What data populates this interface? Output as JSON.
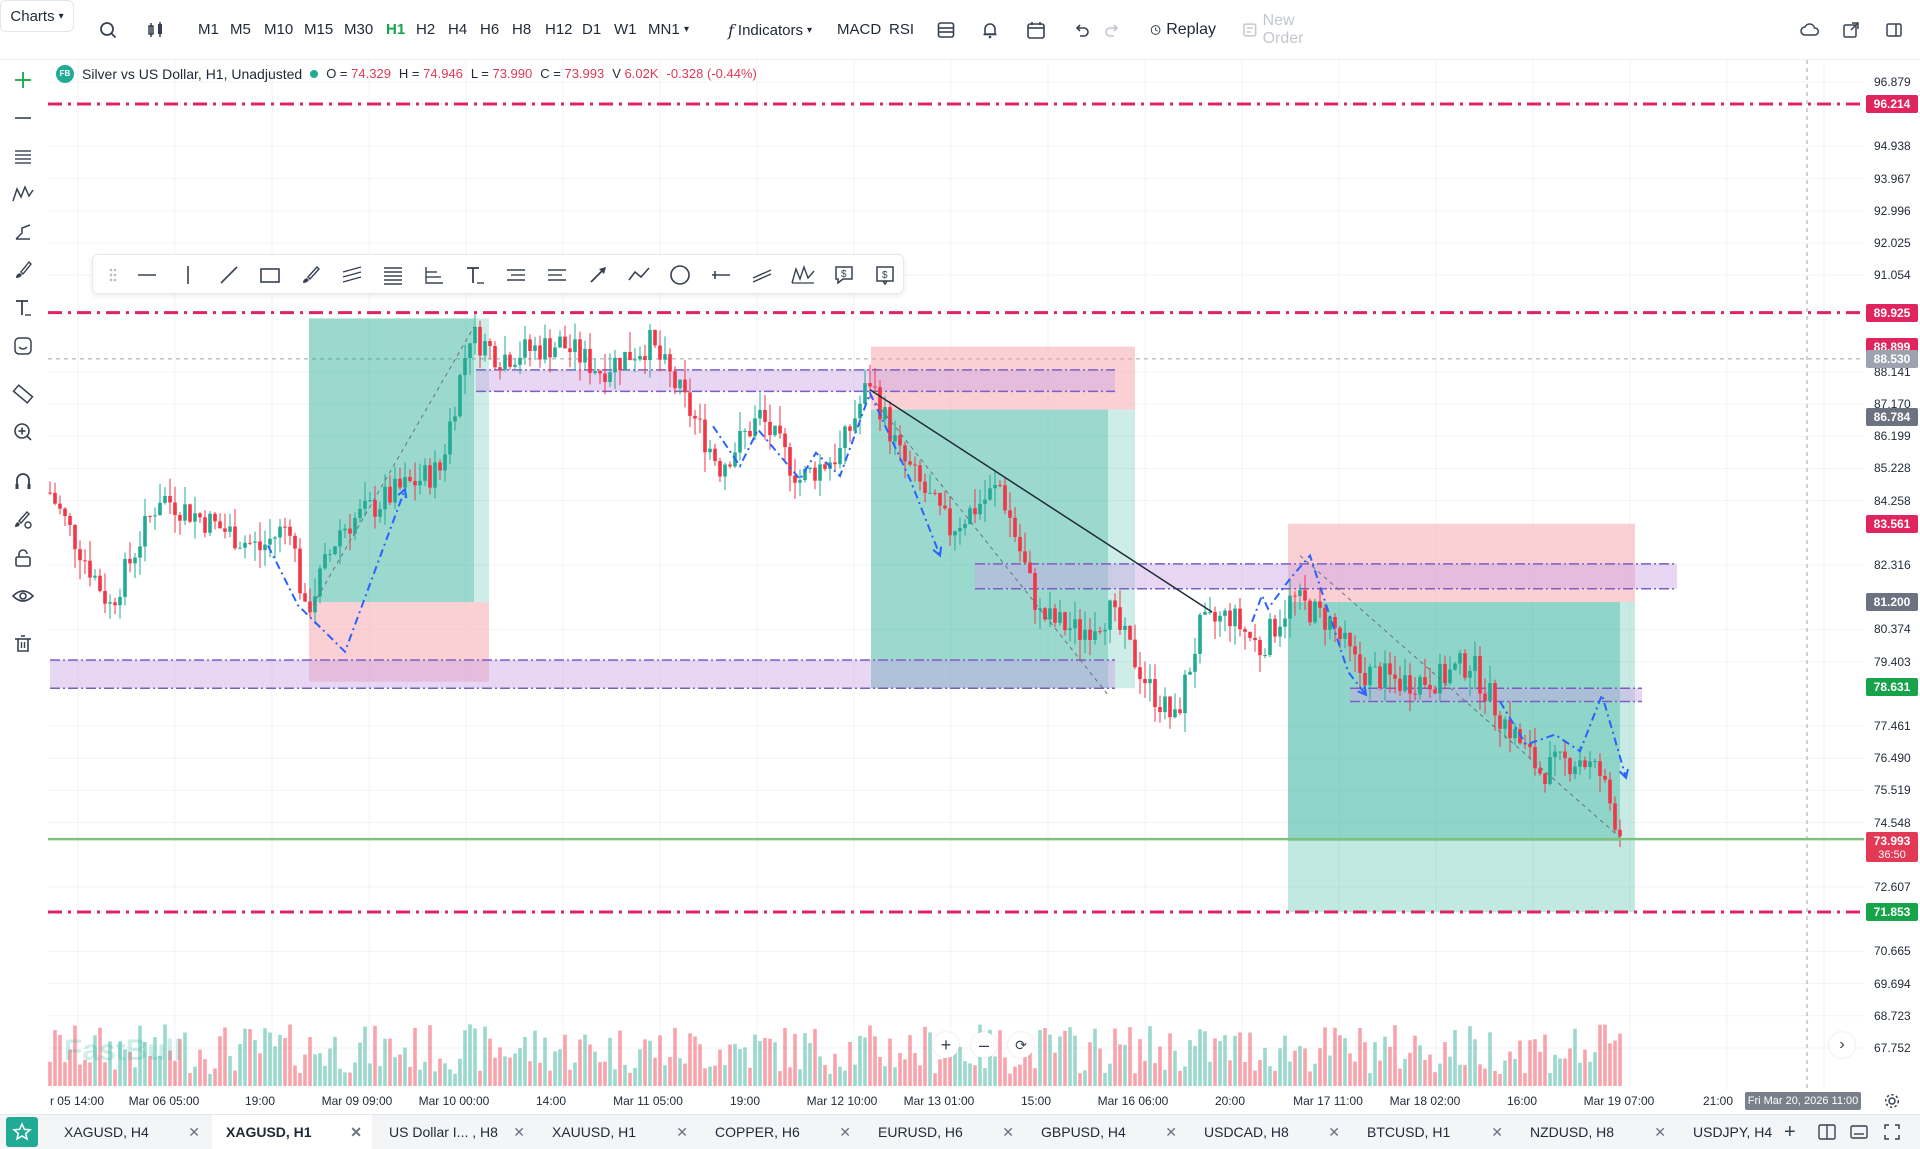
{
  "toolbar": {
    "charts_label": "Charts",
    "timeframes": [
      "M1",
      "M5",
      "M10",
      "M15",
      "M30",
      "H1",
      "H2",
      "H4",
      "H6",
      "H8",
      "H12",
      "D1",
      "W1",
      "MN1"
    ],
    "active_timeframe": "H1",
    "indicators_label": "Indicators",
    "macd_label": "MACD",
    "rsi_label": "RSI",
    "replay_label": "Replay",
    "new_order_label": "New Order"
  },
  "legend": {
    "badge": "FB",
    "symbol": "Silver vs US Dollar, H1, Unadjusted",
    "open_label": "O =",
    "open": "74.329",
    "high_label": "H =",
    "high": "74.946",
    "low_label": "L =",
    "low": "73.990",
    "close_label": "C =",
    "close": "73.993",
    "volume_label": "V",
    "volume": "6.02K",
    "change": "-0.328 (-0.44%)"
  },
  "price_axis": {
    "ticks": [
      "96.879",
      "94.938",
      "93.967",
      "92.996",
      "92.025",
      "91.054",
      "88.141",
      "87.170",
      "86.199",
      "85.228",
      "84.258",
      "82.316",
      "80.374",
      "79.403",
      "77.461",
      "76.490",
      "75.519",
      "74.548",
      "72.607",
      "70.665",
      "69.694",
      "68.723",
      "67.752"
    ],
    "badges": [
      {
        "value": "96.214",
        "color": "#e0245e"
      },
      {
        "value": "89.925",
        "color": "#e0245e"
      },
      {
        "value": "88.899",
        "color": "#e0245e"
      },
      {
        "value": "88.530",
        "color": "#9ca3af"
      },
      {
        "value": "86.784",
        "color": "#6b7280"
      },
      {
        "value": "83.561",
        "color": "#e0245e"
      },
      {
        "value": "81.200",
        "color": "#6b7280"
      },
      {
        "value": "78.631",
        "color": "#16a34a"
      },
      {
        "value": "73.993",
        "color": "#e23a55"
      },
      {
        "value": "71.853",
        "color": "#16a34a"
      }
    ],
    "countdown": "36:50"
  },
  "time_axis": {
    "labels": [
      "r 05 14:00",
      "Mar 06 05:00",
      "19:00",
      "Mar 09 09:00",
      "Mar 10 00:00",
      "14:00",
      "Mar 11 05:00",
      "19:00",
      "Mar 12 10:00",
      "Mar 13 01:00",
      "15:00",
      "Mar 16 06:00",
      "20:00",
      "Mar 17 11:00",
      "Mar 18 02:00",
      "16:00",
      "Mar 19 07:00",
      "21:00"
    ],
    "cursor_time": "Fri Mar 20, 2026 11:00"
  },
  "watermark": "FastBull",
  "tabs": [
    {
      "label": "XAGUSD, H4",
      "active": false
    },
    {
      "label": "XAGUSD, H1",
      "active": true
    },
    {
      "label": "US Dollar I... , H8",
      "active": false
    },
    {
      "label": "XAUUSD, H1",
      "active": false
    },
    {
      "label": "COPPER, H6",
      "active": false
    },
    {
      "label": "EURUSD, H6",
      "active": false
    },
    {
      "label": "GBPUSD, H4",
      "active": false
    },
    {
      "label": "USDCAD, H8",
      "active": false
    },
    {
      "label": "BTCUSD, H1",
      "active": false
    },
    {
      "label": "NZDUSD, H8",
      "active": false
    },
    {
      "label": "USDJPY, H4",
      "active": false
    }
  ],
  "colors": {
    "up": "#22ab94",
    "down": "#f23645",
    "level_line": "#e0245e",
    "zone_purple": "#c9a3e6",
    "profit_zone": "#22ab94",
    "loss_zone": "#f7a9b0",
    "pattern_line": "#2962ff"
  }
}
